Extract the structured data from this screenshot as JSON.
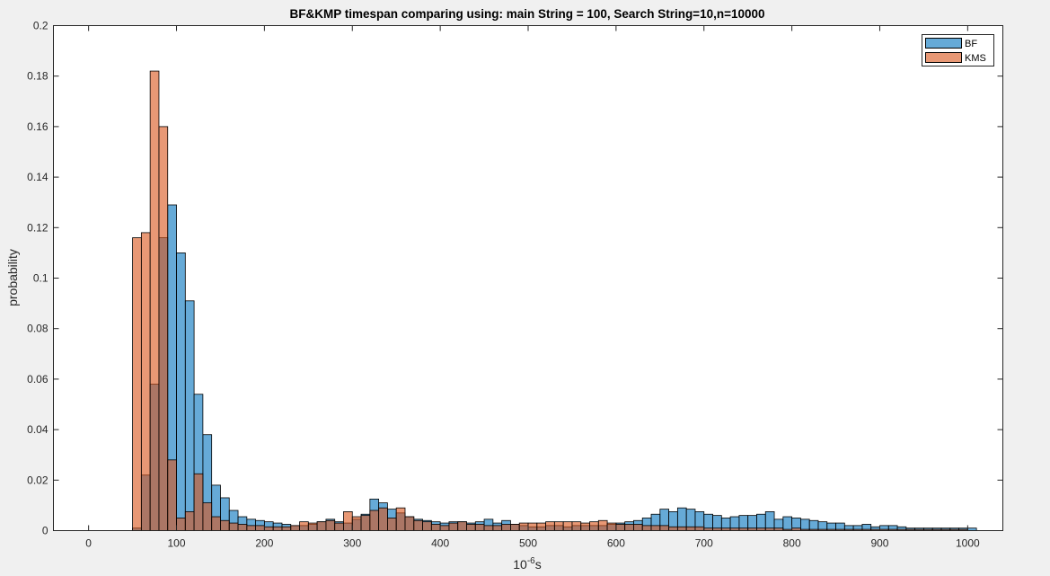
{
  "chart_data": {
    "type": "bar",
    "title": "BF&KMP timespan comparing using: main String = 100, Search String=10,n=10000",
    "xlabel_base": "10",
    "xlabel_exp": "-6",
    "xlabel_unit": "s",
    "ylabel": "probability",
    "xlim": [
      -40,
      1040
    ],
    "ylim": [
      0,
      0.2
    ],
    "xticks": [
      0,
      100,
      200,
      300,
      400,
      500,
      600,
      700,
      800,
      900,
      1000
    ],
    "yticks": [
      0,
      0.02,
      0.04,
      0.06,
      0.08,
      0.1,
      0.12,
      0.14,
      0.16,
      0.18,
      0.2
    ],
    "grid": false,
    "legend_position": "top-right",
    "bin_start": 50,
    "bin_width": 10,
    "series": [
      {
        "name": "BF",
        "color": "#0072BD",
        "values": [
          0.001,
          0.022,
          0.058,
          0.116,
          0.129,
          0.11,
          0.091,
          0.054,
          0.038,
          0.018,
          0.013,
          0.008,
          0.0055,
          0.0045,
          0.004,
          0.0035,
          0.003,
          0.0025,
          0.002,
          0.002,
          0.0025,
          0.0035,
          0.0045,
          0.0035,
          0.003,
          0.0045,
          0.0065,
          0.0125,
          0.011,
          0.0085,
          0.007,
          0.0055,
          0.0045,
          0.004,
          0.0035,
          0.003,
          0.0035,
          0.0035,
          0.003,
          0.0035,
          0.0045,
          0.003,
          0.004,
          0.0025,
          0.002,
          0.0015,
          0.0015,
          0.002,
          0.002,
          0.0015,
          0.002,
          0.002,
          0.002,
          0.002,
          0.0025,
          0.003,
          0.0035,
          0.004,
          0.005,
          0.0065,
          0.0085,
          0.0075,
          0.009,
          0.0085,
          0.0075,
          0.0065,
          0.006,
          0.005,
          0.0055,
          0.006,
          0.006,
          0.0065,
          0.0075,
          0.0045,
          0.0055,
          0.005,
          0.0045,
          0.004,
          0.0035,
          0.003,
          0.003,
          0.002,
          0.002,
          0.0025,
          0.0015,
          0.002,
          0.002,
          0.0015,
          0.001,
          0.001,
          0.001,
          0.001,
          0.001,
          0.001,
          0.001,
          0.001
        ]
      },
      {
        "name": "KMS",
        "color": "#D95319",
        "values": [
          0.116,
          0.118,
          0.182,
          0.16,
          0.028,
          0.005,
          0.0075,
          0.0225,
          0.011,
          0.0055,
          0.004,
          0.003,
          0.0025,
          0.002,
          0.002,
          0.0015,
          0.0015,
          0.0015,
          0.002,
          0.0035,
          0.003,
          0.0035,
          0.004,
          0.003,
          0.0075,
          0.0055,
          0.006,
          0.008,
          0.009,
          0.005,
          0.009,
          0.0055,
          0.004,
          0.0035,
          0.0025,
          0.002,
          0.003,
          0.0035,
          0.0025,
          0.0025,
          0.002,
          0.002,
          0.0025,
          0.0025,
          0.003,
          0.003,
          0.003,
          0.0035,
          0.0035,
          0.0035,
          0.0035,
          0.003,
          0.0035,
          0.004,
          0.003,
          0.0025,
          0.0025,
          0.0025,
          0.002,
          0.002,
          0.002,
          0.0015,
          0.0015,
          0.0015,
          0.0015,
          0.001,
          0.001,
          0.001,
          0.001,
          0.001,
          0.001,
          0.001,
          0.001,
          0.001,
          0.0005,
          0.001,
          0.0005,
          0.0005,
          0.0005,
          0.0005,
          0.0005,
          0.0005,
          0.0005,
          0.0005,
          0.0005,
          0.0005,
          0.0005,
          0.0005,
          0.0005,
          0.0005,
          0.0005,
          0.0005,
          0.0005,
          0.0005,
          0.0005
        ]
      }
    ]
  }
}
